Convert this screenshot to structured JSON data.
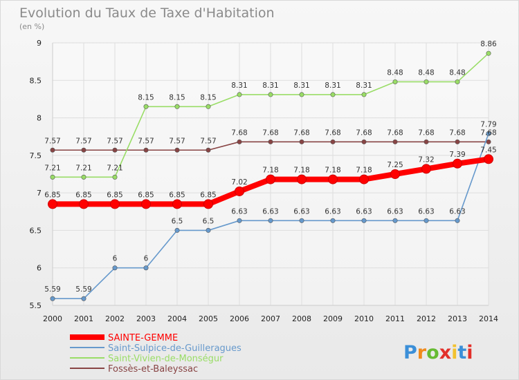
{
  "chart_data": {
    "type": "line",
    "title": "Evolution du Taux de Taxe d'Habitation",
    "subtitle": "(en %)",
    "x": [
      "2000",
      "2001",
      "2002",
      "2003",
      "2004",
      "2005",
      "2006",
      "2007",
      "2008",
      "2009",
      "2010",
      "2011",
      "2012",
      "2013",
      "2014"
    ],
    "ylim": [
      5.5,
      9
    ],
    "yticks": [
      "5.5",
      "6",
      "6.5",
      "7",
      "7.5",
      "8",
      "8.5",
      "9"
    ],
    "grid": true,
    "legend_position": "bottom-left",
    "series": [
      {
        "name": "SAINTE-GEMME",
        "color": "#ff0000",
        "values": [
          6.85,
          6.85,
          6.85,
          6.85,
          6.85,
          6.85,
          7.02,
          7.18,
          7.18,
          7.18,
          7.18,
          7.25,
          7.32,
          7.39,
          7.45
        ],
        "labels": [
          "6.85",
          "6.85",
          "6.85",
          "6.85",
          "6.85",
          "6.85",
          "7.02",
          "7.18",
          "7.18",
          "7.18",
          "7.18",
          "7.25",
          "7.32",
          "7.39",
          "7.45"
        ]
      },
      {
        "name": "Saint-Sulpice-de-Guilleragues",
        "color": "#6699cc",
        "values": [
          5.59,
          5.59,
          6,
          6,
          6.5,
          6.5,
          6.63,
          6.63,
          6.63,
          6.63,
          6.63,
          6.63,
          6.63,
          6.63,
          7.79
        ],
        "labels": [
          "5.59",
          "5.59",
          "6",
          "6",
          "6.5",
          "6.5",
          "6.63",
          "6.63",
          "6.63",
          "6.63",
          "6.63",
          "6.63",
          "6.63",
          "6.63",
          "7.79"
        ]
      },
      {
        "name": "Saint-Vivien-de-Monségur",
        "color": "#99dd66",
        "values": [
          7.21,
          7.21,
          7.21,
          8.15,
          8.15,
          8.15,
          8.31,
          8.31,
          8.31,
          8.31,
          8.31,
          8.48,
          8.48,
          8.48,
          8.86
        ],
        "labels": [
          "7.21",
          "7.21",
          "7.21",
          "8.15",
          "8.15",
          "8.15",
          "8.31",
          "8.31",
          "8.31",
          "8.31",
          "8.31",
          "8.48",
          "8.48",
          "8.48",
          "8.86"
        ]
      },
      {
        "name": "Fossès-et-Baleyssac",
        "color": "#884444",
        "values": [
          7.57,
          7.57,
          7.57,
          7.57,
          7.57,
          7.57,
          7.68,
          7.68,
          7.68,
          7.68,
          7.68,
          7.68,
          7.68,
          7.68,
          7.68
        ],
        "labels": [
          "7.57",
          "7.57",
          "7.57",
          "7.57",
          "7.57",
          "7.57",
          "7.68",
          "7.68",
          "7.68",
          "7.68",
          "7.68",
          "7.68",
          "7.68",
          "7.68",
          "7.68"
        ]
      }
    ]
  },
  "brand": {
    "name": "Proxiti",
    "letters": [
      "P",
      "r",
      "o",
      "x",
      "i",
      "t",
      "i"
    ],
    "colors": [
      "#3b8fd8",
      "#f08a1c",
      "#66bb33",
      "#e2302a",
      "#f2c230",
      "#3b8fd8",
      "#e2302a"
    ]
  }
}
